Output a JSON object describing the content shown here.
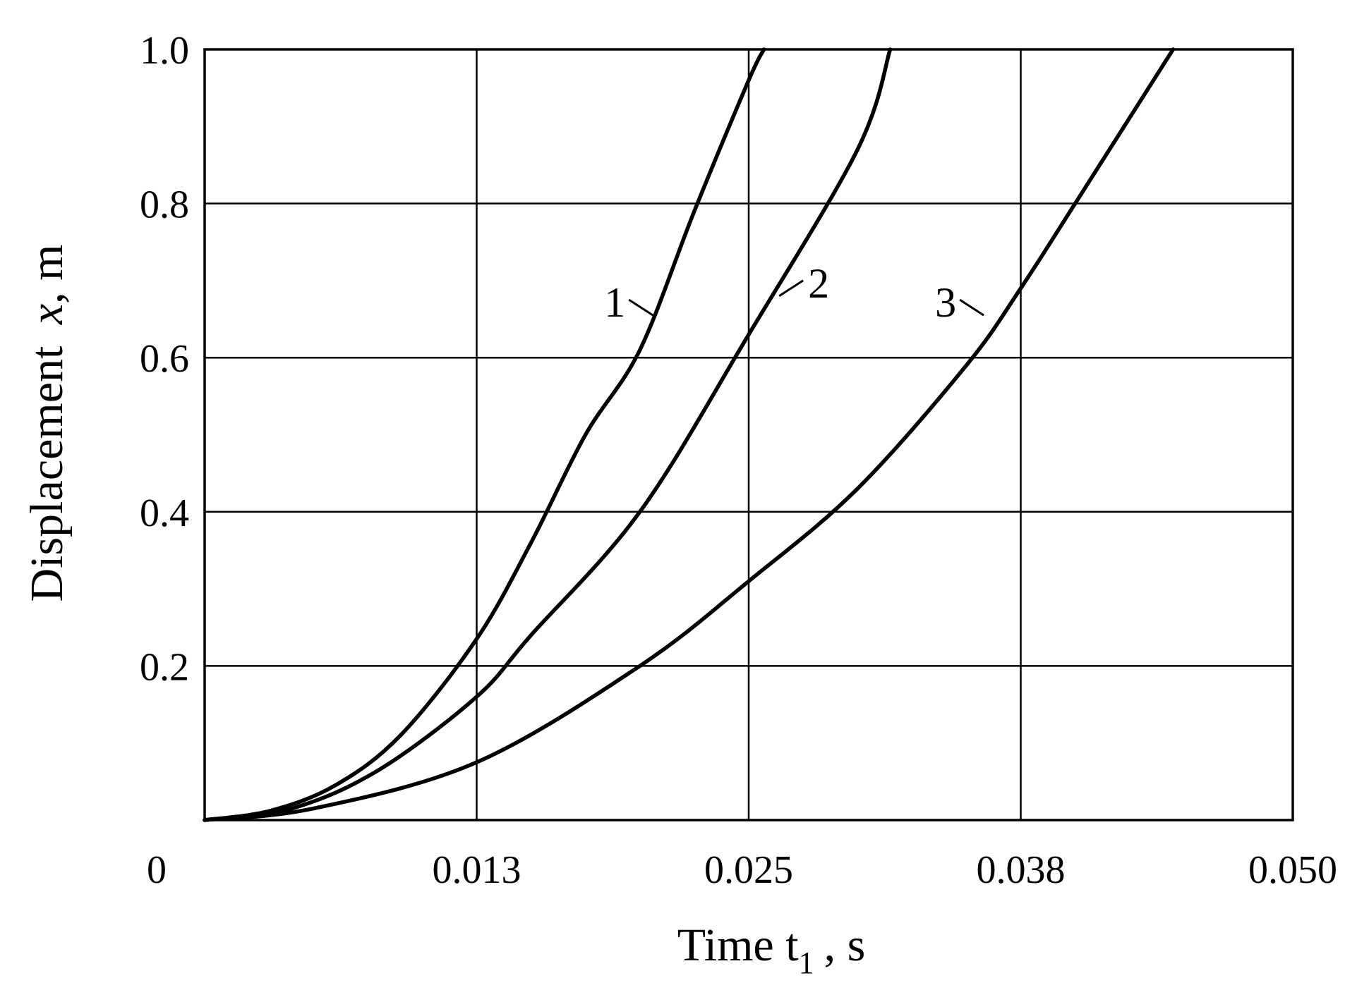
{
  "chart_data": {
    "type": "line",
    "title": "",
    "xlabel": "Time t",
    "xlabel_subscript": "1",
    "xlabel_unit": ", s",
    "ylabel_prefix": "Displacement ",
    "ylabel_var": "x",
    "ylabel_unit": ", m",
    "xlim": [
      0,
      0.05
    ],
    "ylim": [
      0,
      1.0
    ],
    "grid": true,
    "x_ticks": [
      {
        "value": 0,
        "label": "0"
      },
      {
        "value": 0.0125,
        "label": "0.013"
      },
      {
        "value": 0.025,
        "label": "0.025"
      },
      {
        "value": 0.0375,
        "label": "0.038"
      },
      {
        "value": 0.05,
        "label": "0.050"
      }
    ],
    "y_ticks": [
      {
        "value": 0.2,
        "label": "0.2"
      },
      {
        "value": 0.4,
        "label": "0.4"
      },
      {
        "value": 0.6,
        "label": "0.6"
      },
      {
        "value": 0.8,
        "label": "0.8"
      },
      {
        "value": 1.0,
        "label": "1.0"
      }
    ],
    "series": [
      {
        "label": "1",
        "label_anchor": {
          "x": 0.0206,
          "y": 0.655
        },
        "x": [
          0,
          0.003,
          0.006,
          0.009,
          0.0125,
          0.015,
          0.0175,
          0.02,
          0.0225,
          0.025,
          0.0257
        ],
        "y": [
          0,
          0.012,
          0.045,
          0.11,
          0.235,
          0.36,
          0.5,
          0.61,
          0.79,
          0.96,
          1.0
        ]
      },
      {
        "label": "2",
        "label_anchor": {
          "x": 0.0264,
          "y": 0.68
        },
        "x": [
          0,
          0.004,
          0.008,
          0.0125,
          0.015,
          0.02,
          0.025,
          0.03,
          0.0315
        ],
        "y": [
          0,
          0.015,
          0.065,
          0.16,
          0.24,
          0.4,
          0.63,
          0.87,
          1.0
        ]
      },
      {
        "label": "3",
        "label_anchor": {
          "x": 0.0358,
          "y": 0.655
        },
        "x": [
          0,
          0.005,
          0.0125,
          0.02,
          0.025,
          0.03,
          0.035,
          0.0375,
          0.04,
          0.0445
        ],
        "y": [
          0,
          0.015,
          0.075,
          0.2,
          0.31,
          0.43,
          0.59,
          0.69,
          0.8,
          1.0
        ]
      }
    ]
  }
}
